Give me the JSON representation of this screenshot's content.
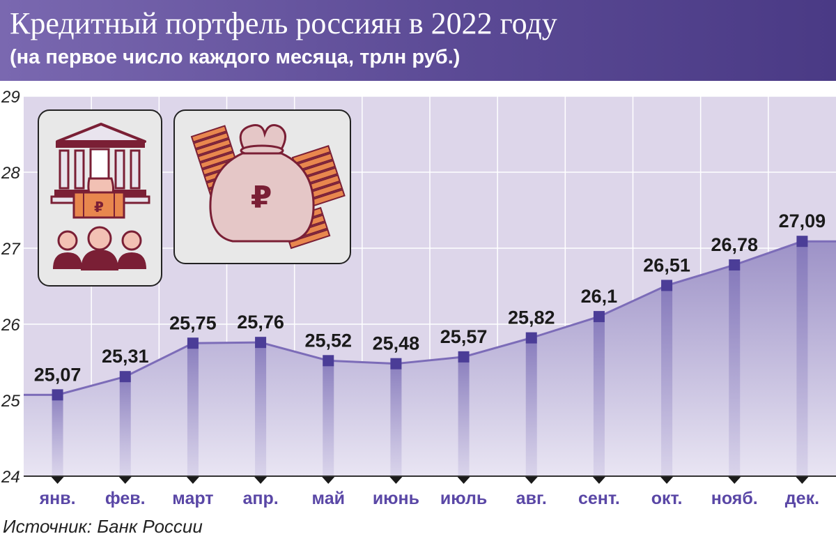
{
  "header": {
    "title": "Кредитный портфель россиян в 2022 году",
    "subtitle": "(на первое число каждого месяца, трлн руб.)"
  },
  "icons": {
    "left_card": [
      "bank-building-icon",
      "hand-with-ruble-box-icon",
      "people-group-icon"
    ],
    "right_card": [
      "money-bag-ruble-icon",
      "banknote-stacks-icon"
    ],
    "ruble_symbol": "₽"
  },
  "source": "Источник: Банк России",
  "colors": {
    "header_bg": "#5b4a95",
    "plot_bg": "#ddd6ea",
    "area_fill": "#9d92c7",
    "line": "#7c6cb8",
    "marker": "#4b3d97",
    "x_label": "#5a47a6",
    "icon_dark": "#7a1f35",
    "icon_light": "#f2c1b4",
    "icon_orange": "#e8874e"
  },
  "chart_data": {
    "type": "area",
    "categories": [
      "янв.",
      "фев.",
      "март",
      "апр.",
      "май",
      "июнь",
      "июль",
      "авг.",
      "сент.",
      "окт.",
      "нояб.",
      "дек."
    ],
    "values": [
      25.07,
      25.31,
      25.75,
      25.76,
      25.52,
      25.48,
      25.57,
      25.82,
      26.1,
      26.51,
      26.78,
      27.09
    ],
    "value_labels": [
      "25,07",
      "25,31",
      "25,75",
      "25,76",
      "25,52",
      "25,48",
      "25,57",
      "25,82",
      "26,1",
      "26,51",
      "26,78",
      "27,09"
    ],
    "title": "Кредитный портфель россиян в 2022 году",
    "subtitle": "(на первое число каждого месяца, трлн руб.)",
    "xlabel": "",
    "ylabel": "",
    "ylim": [
      24,
      29
    ],
    "yticks": [
      24,
      25,
      26,
      27,
      28,
      29
    ],
    "grid": true,
    "legend": "none"
  }
}
